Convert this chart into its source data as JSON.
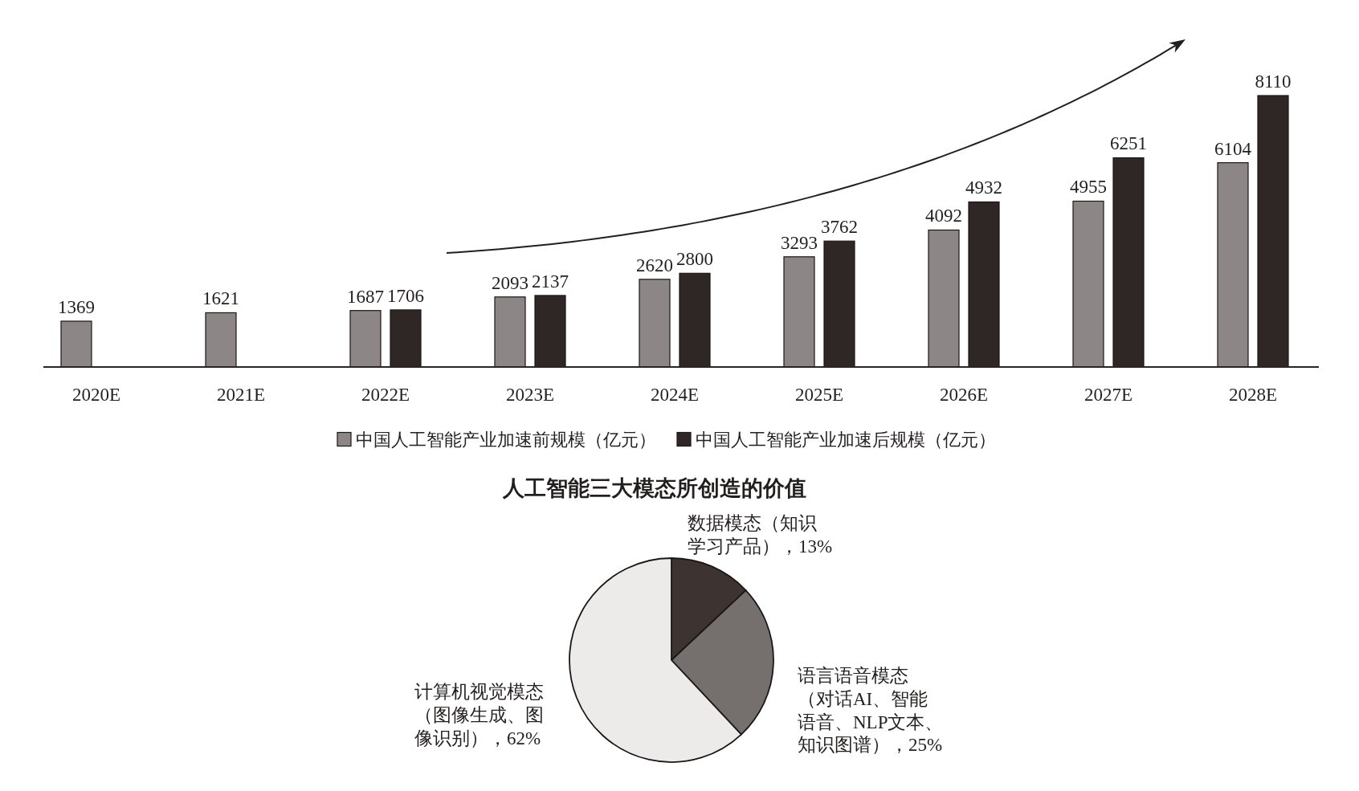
{
  "chart_data": [
    {
      "type": "bar",
      "categories": [
        "2020E",
        "2021E",
        "2022E",
        "2023E",
        "2024E",
        "2025E",
        "2026E",
        "2027E",
        "2028E"
      ],
      "series": [
        {
          "name": "中国人工智能产业加速前规模（亿元）",
          "color": "#8c8786",
          "values": [
            1369,
            1621,
            1687,
            2093,
            2620,
            3293,
            4092,
            4955,
            6104
          ]
        },
        {
          "name": "中国人工智能产业加速后规模（亿元）",
          "color": "#2e2725",
          "values": [
            null,
            null,
            1706,
            2137,
            2800,
            3762,
            4932,
            6251,
            8110
          ]
        }
      ],
      "data_labels": true,
      "legend": "bottom"
    },
    {
      "type": "pie",
      "title": "人工智能三大模态所创造的价值",
      "categories": [
        "数据模态（知识学习产品），13%",
        "语言语音模态（对话AI、智能语音、NLP文本、知识图谱），25%",
        "计算机视觉模态（图像生成、图像识别），62%"
      ],
      "values": [
        13,
        25,
        62
      ],
      "colors": [
        "#3d3432",
        "#75706e",
        "#ecebea"
      ]
    }
  ]
}
